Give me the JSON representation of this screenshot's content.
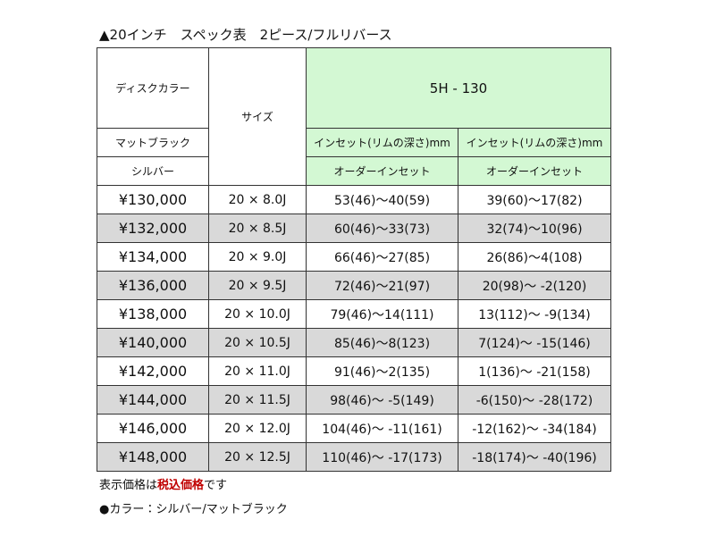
{
  "title": "▲20インチ　スペック表　2ピース/フルリバース",
  "table": {
    "header": {
      "disc_color": "ディスクカラー",
      "size": "サイズ",
      "pcd": "5H - 130",
      "colors": [
        "マットブラック",
        "シルバー"
      ],
      "inset_labels": [
        "インセット(リムの深さ)mm",
        "インセット(リムの深さ)mm"
      ],
      "order_labels": [
        "オーダーインセット",
        "オーダーインセット"
      ]
    },
    "rows": [
      [
        "¥130,000",
        "20 × 8.0J",
        "53(46)～40(59)",
        "39(60)～17(82)"
      ],
      [
        "¥132,000",
        "20 × 8.5J",
        "60(46)～33(73)",
        "32(74)～10(96)"
      ],
      [
        "¥134,000",
        "20 × 9.0J",
        "66(46)～27(85)",
        "26(86)～4(108)"
      ],
      [
        "¥136,000",
        "20 × 9.5J",
        "72(46)～21(97)",
        "20(98)～ -2(120)"
      ],
      [
        "¥138,000",
        "20 × 10.0J",
        "79(46)～14(111)",
        "13(112)～ -9(134)"
      ],
      [
        "¥140,000",
        "20 × 10.5J",
        "85(46)～8(123)",
        "7(124)～ -15(146)"
      ],
      [
        "¥142,000",
        "20 × 11.0J",
        "91(46)～2(135)",
        "1(136)～ -21(158)"
      ],
      [
        "¥144,000",
        "20 × 11.5J",
        "98(46)～ -5(149)",
        "-6(150)～ -28(172)"
      ],
      [
        "¥146,000",
        "20 × 12.0J",
        "104(46)～ -11(161)",
        "-12(162)～ -34(184)"
      ],
      [
        "¥148,000",
        "20 × 12.5J",
        "110(46)～ -17(173)",
        "-18(174)～ -40(196)"
      ]
    ]
  },
  "notes": {
    "price_note": [
      "表示価格は",
      "税込価格",
      "です"
    ],
    "color_note": "●カラー：シルバー/マットブラック"
  }
}
